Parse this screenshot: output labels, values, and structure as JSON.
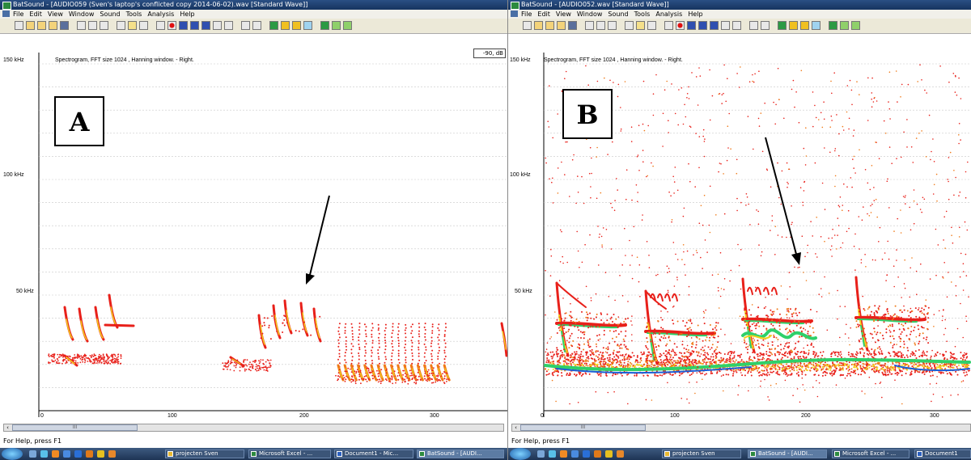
{
  "windowA": {
    "title": "BatSound - [AUDIO059 (Sven's laptop's conflicted copy 2014-06-02).wav [Standard Wave]]",
    "menu": [
      "File",
      "Edit",
      "View",
      "Window",
      "Sound",
      "Tools",
      "Analysis",
      "Help"
    ],
    "spectro_label": "Spectrogram, FFT size 1024 , Hanning window. - Right.",
    "db_value": "-90, dB",
    "y_ticks": [
      "150 kHz",
      "100 kHz",
      "50 kHz"
    ],
    "x_ticks": [
      "0",
      "100",
      "200",
      "300"
    ],
    "panel_label": "A",
    "scroll_thumb": "III",
    "status": "For Help, press F1"
  },
  "windowB": {
    "title": "BatSound - [AUDIO052.wav [Standard Wave]]",
    "menu": [
      "File",
      "Edit",
      "View",
      "Window",
      "Sound",
      "Tools",
      "Analysis",
      "Help"
    ],
    "spectro_label": "Spectrogram, FFT size 1024 , Hanning window. - Right.",
    "y_ticks": [
      "150 kHz",
      "100 kHz",
      "50 kHz"
    ],
    "x_ticks": [
      "0",
      "100",
      "200",
      "300"
    ],
    "panel_label": "B",
    "scroll_thumb": "III",
    "status": "For Help, press F1"
  },
  "taskbarA": [
    "projecten Sven",
    "Microsoft Excel - ...",
    "Document1 - Mic...",
    "BatSound - [AUDI..."
  ],
  "taskbarB": [
    "projecten Sven",
    "BatSound - [AUDI...",
    "Microsoft Excel - ...",
    "Document1"
  ],
  "colors": {
    "title": "#1f3f6e",
    "spec_red": "#e8201a",
    "spec_yellow": "#f2d21c",
    "spec_green": "#2fd06a",
    "spec_blue": "#1b5fd6"
  }
}
